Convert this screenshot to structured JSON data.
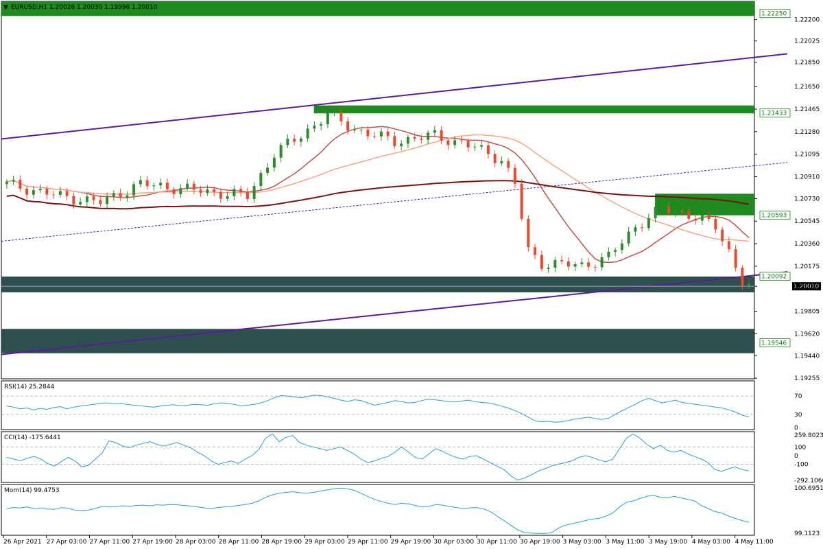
{
  "window": {
    "title": "EURUSD,H1  1.20026 1.20030 1.19996 1.20010"
  },
  "colors": {
    "bull": "#2e8b2e",
    "bear": "#e8492f",
    "ma_fast": "#c0504d",
    "ma_mid": "#f4a582",
    "ma_slow": "#7a1010",
    "channel": "#5b1a9e",
    "supply": "#1f8a1f",
    "demand": "#2f4f4f",
    "oscillator": "#2b9cd8",
    "level_dashed": "#aaaaaa"
  },
  "chart_data": [
    {
      "type": "candlestick",
      "title": "EURUSD,H1  1.20026 1.20030 1.19996 1.20010",
      "symbol": "EURUSD",
      "timeframe": "H1",
      "ohlc_last": {
        "open": 1.20026,
        "high": 1.2003,
        "low": 1.19996,
        "close": 1.2001
      },
      "ylim": [
        1.1925,
        1.2235
      ],
      "y_ticks": [
        "1.22200",
        "1.22025",
        "1.21850",
        "1.21650",
        "1.21465",
        "1.21280",
        "1.21095",
        "1.20910",
        "1.20730",
        "1.20545",
        "1.20360",
        "1.20175",
        "1.20010",
        "1.19805",
        "1.19620",
        "1.19440",
        "1.19255"
      ],
      "x_ticks": [
        "26 Apr 2021",
        "27 Apr 03:00",
        "27 Apr 11:00",
        "27 Apr 19:00",
        "28 Apr 03:00",
        "28 Apr 11:00",
        "28 Apr 19:00",
        "29 Apr 03:00",
        "29 Apr 11:00",
        "29 Apr 19:00",
        "30 Apr 03:00",
        "30 Apr 11:00",
        "30 Apr 19:00",
        "3 May 03:00",
        "3 May 11:00",
        "3 May 19:00",
        "4 May 03:00",
        "4 May 11:00"
      ],
      "price_levels": [
        {
          "label": "1.22250",
          "value": 1.2225
        },
        {
          "label": "1.21433",
          "value": 1.21433
        },
        {
          "label": "1.20593",
          "value": 1.20593
        },
        {
          "label": "1.20092",
          "value": 1.20092
        },
        {
          "label": "1.19546",
          "value": 1.19546
        }
      ],
      "current_price": "1.20010",
      "zones": [
        {
          "kind": "supply",
          "y_top": 1.2235,
          "y_bottom": 1.2223,
          "x_start": 0,
          "x_end": 1.0
        },
        {
          "kind": "supply",
          "y_top": 1.21495,
          "y_bottom": 1.2143,
          "x_start": 0.415,
          "x_end": 1.0
        },
        {
          "kind": "supply",
          "y_top": 1.2077,
          "y_bottom": 1.20593,
          "x_start": 0.868,
          "x_end": 1.0
        },
        {
          "kind": "demand",
          "y_top": 1.2009,
          "y_bottom": 1.1996,
          "x_start": 0,
          "x_end": 1.0
        },
        {
          "kind": "demand",
          "y_top": 1.1966,
          "y_bottom": 1.1946,
          "x_start": 0,
          "x_end": 1.0
        }
      ],
      "channel_lines": [
        {
          "style": "solid",
          "from": [
            0,
            1.2122
          ],
          "to": [
            1.0,
            1.2189
          ]
        },
        {
          "style": "solid",
          "from": [
            0,
            1.1945
          ],
          "to": [
            1.0,
            1.201
          ]
        },
        {
          "style": "dashed",
          "from": [
            0,
            1.2038
          ],
          "to": [
            1.0,
            1.21
          ]
        }
      ]
    },
    {
      "type": "line",
      "title": "RSI(14) 25.2844",
      "ylim": [
        0,
        100
      ],
      "y_ticks": [
        "70",
        "30",
        "0"
      ],
      "levels": [
        70,
        30
      ],
      "values": [
        48,
        46,
        42,
        44,
        40,
        43,
        41,
        45,
        47,
        42,
        46,
        48,
        50,
        52,
        54,
        55,
        53,
        54,
        52,
        50,
        49,
        47,
        46,
        48,
        50,
        51,
        49,
        50,
        52,
        51,
        50,
        53,
        55,
        54,
        52,
        48,
        50,
        52,
        55,
        60,
        66,
        71,
        70,
        68,
        66,
        69,
        72,
        71,
        68,
        65,
        61,
        58,
        62,
        60,
        55,
        50,
        53,
        56,
        60,
        58,
        55,
        56,
        60,
        63,
        62,
        60,
        58,
        57,
        59,
        61,
        58,
        56,
        55,
        52,
        48,
        44,
        38,
        32,
        24,
        16,
        14,
        15,
        13,
        14,
        17,
        20,
        22,
        24,
        21,
        19,
        22,
        30,
        38,
        45,
        52,
        60,
        65,
        60,
        55,
        58,
        61,
        56,
        54,
        52,
        50,
        48,
        46,
        44,
        40,
        35,
        28,
        25
      ]
    },
    {
      "type": "line",
      "title": "CCI(14) -175.6441",
      "ylim": [
        -292.1066,
        259.8023
      ],
      "y_ticks": [
        "259.8023",
        "100",
        "0",
        "-100",
        "-292.1066"
      ],
      "levels": [
        100,
        -100
      ],
      "values": [
        -20,
        -40,
        -60,
        -30,
        -10,
        -40,
        -90,
        -120,
        -70,
        -20,
        -60,
        -130,
        -110,
        -40,
        30,
        170,
        150,
        110,
        90,
        120,
        140,
        160,
        130,
        110,
        130,
        150,
        120,
        90,
        40,
        0,
        -60,
        -100,
        -80,
        -60,
        -90,
        -40,
        0,
        70,
        200,
        250,
        160,
        210,
        230,
        150,
        120,
        100,
        80,
        60,
        80,
        100,
        60,
        20,
        -40,
        -80,
        -60,
        -30,
        -10,
        40,
        100,
        40,
        -20,
        -40,
        20,
        80,
        50,
        10,
        -20,
        -40,
        -10,
        0,
        -40,
        -80,
        -120,
        -160,
        -230,
        -280,
        -260,
        -220,
        -180,
        -150,
        -120,
        -100,
        -80,
        -60,
        -20,
        0,
        -20,
        -50,
        -70,
        -40,
        80,
        200,
        250,
        200,
        130,
        80,
        120,
        60,
        40,
        60,
        20,
        -10,
        -40,
        -80,
        -160,
        -180,
        -150,
        -130,
        -160,
        -176
      ]
    },
    {
      "type": "line",
      "title": "Mom(14) 99.4753",
      "ylim": [
        99.1123,
        100.6951
      ],
      "y_ticks": [
        "100.6951",
        "99.1123"
      ],
      "values": [
        99.95,
        99.98,
        99.97,
        100.0,
        99.94,
        99.97,
        99.93,
        99.92,
        99.98,
        99.96,
        99.9,
        99.88,
        99.9,
        99.95,
        100.02,
        100.0,
        100.01,
        100.04,
        100.02,
        100.05,
        100.06,
        100.04,
        100.07,
        100.06,
        100.08,
        100.07,
        100.05,
        100.03,
        100.0,
        99.97,
        99.95,
        99.98,
        100.0,
        100.02,
        100.05,
        100.08,
        100.12,
        100.2,
        100.32,
        100.4,
        100.45,
        100.48,
        100.5,
        100.47,
        100.45,
        100.48,
        100.52,
        100.56,
        100.6,
        100.62,
        100.6,
        100.55,
        100.45,
        100.35,
        100.25,
        100.18,
        100.12,
        100.08,
        100.12,
        100.1,
        100.05,
        100.0,
        100.02,
        100.08,
        100.06,
        100.02,
        99.98,
        99.95,
        99.97,
        99.98,
        99.94,
        99.85,
        99.7,
        99.55,
        99.4,
        99.25,
        99.16,
        99.14,
        99.13,
        99.13,
        99.15,
        99.3,
        99.4,
        99.45,
        99.5,
        99.55,
        99.6,
        99.62,
        99.7,
        99.8,
        100.0,
        100.15,
        100.2,
        100.28,
        100.35,
        100.38,
        100.32,
        100.3,
        100.35,
        100.3,
        100.25,
        100.2,
        100.05,
        99.95,
        99.85,
        99.8,
        99.7,
        99.62,
        99.55,
        99.5
      ]
    }
  ]
}
